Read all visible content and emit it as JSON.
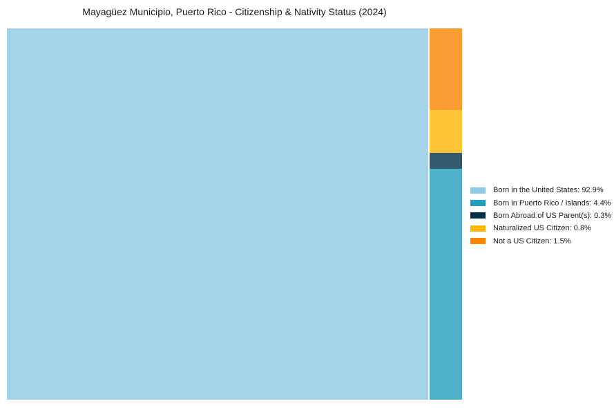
{
  "title": "Mayagüez Municipio, Puerto Rico - Citizenship & Nativity Status (2024)",
  "colors": {
    "background": "#ffffff",
    "title_text": "#1a1a1a",
    "legend_text": "#1a1a1a"
  },
  "chart_data": {
    "type": "treemap",
    "title": "Mayagüez Municipio, Puerto Rico - Citizenship & Nativity Status (2024)",
    "unit": "%",
    "legend_position": "right-center",
    "categories": [
      "Born in the United States",
      "Born in Puerto Rico / Islands",
      "Born Abroad of US Parent(s)",
      "Naturalized US Citizen",
      "Not a US Citizen"
    ],
    "values": [
      92.9,
      4.4,
      0.3,
      0.8,
      1.5
    ],
    "series": [
      {
        "label": "Born in the United States",
        "value": 92.9,
        "legend_text": "Born in the United States: 92.9%",
        "swatch_color": "#8ECAE6",
        "block_color": "#A5D4EA"
      },
      {
        "label": "Born in Puerto Rico / Islands",
        "value": 4.4,
        "legend_text": "Born in Puerto Rico / Islands: 4.4%",
        "swatch_color": "#219EBC",
        "block_color": "#4DB1C9"
      },
      {
        "label": "Born Abroad of US Parent(s)",
        "value": 0.3,
        "legend_text": "Born Abroad of US Parent(s): 0.3%",
        "swatch_color": "#023047",
        "block_color": "#35596C"
      },
      {
        "label": "Naturalized US Citizen",
        "value": 0.8,
        "legend_text": "Naturalized US Citizen: 0.8%",
        "swatch_color": "#FFB703",
        "block_color": "#FFC535"
      },
      {
        "label": "Not a US Citizen",
        "value": 1.5,
        "legend_text": "Not a US Citizen: 1.5%",
        "swatch_color": "#FB8500",
        "block_color": "#FC9D33"
      }
    ]
  }
}
